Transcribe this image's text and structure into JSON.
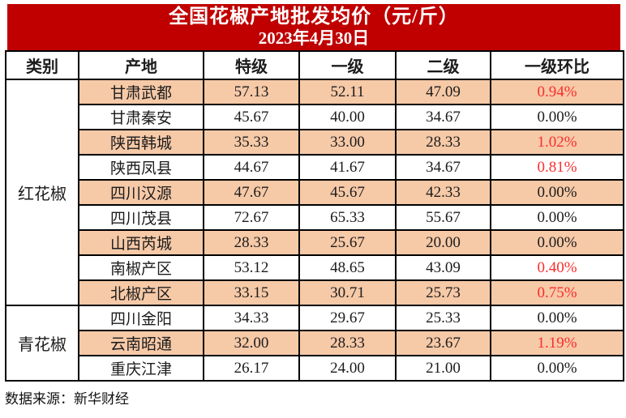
{
  "title": {
    "line1": "全国花椒产地批发均价（元/斤）",
    "line2": "2023年4月30日"
  },
  "table": {
    "columns": [
      "类别",
      "产地",
      "特级",
      "一级",
      "二级",
      "一级环比"
    ],
    "groups": [
      {
        "category": "红花椒",
        "rows": [
          {
            "origin": "甘肃武都",
            "premium": "57.13",
            "grade1": "52.11",
            "grade2": "47.09",
            "mom": "0.94%",
            "mom_highlight": true,
            "shaded": true
          },
          {
            "origin": "甘肃秦安",
            "premium": "45.67",
            "grade1": "40.00",
            "grade2": "34.67",
            "mom": "0.00%",
            "mom_highlight": false,
            "shaded": false
          },
          {
            "origin": "陕西韩城",
            "premium": "35.33",
            "grade1": "33.00",
            "grade2": "28.33",
            "mom": "1.02%",
            "mom_highlight": true,
            "shaded": true
          },
          {
            "origin": "陕西凤县",
            "premium": "44.67",
            "grade1": "41.67",
            "grade2": "34.67",
            "mom": "0.81%",
            "mom_highlight": true,
            "shaded": false
          },
          {
            "origin": "四川汉源",
            "premium": "47.67",
            "grade1": "45.67",
            "grade2": "42.33",
            "mom": "0.00%",
            "mom_highlight": false,
            "shaded": true
          },
          {
            "origin": "四川茂县",
            "premium": "72.67",
            "grade1": "65.33",
            "grade2": "55.67",
            "mom": "0.00%",
            "mom_highlight": false,
            "shaded": false
          },
          {
            "origin": "山西芮城",
            "premium": "28.33",
            "grade1": "25.67",
            "grade2": "20.00",
            "mom": "0.00%",
            "mom_highlight": false,
            "shaded": true
          },
          {
            "origin": "南椒产区",
            "premium": "53.12",
            "grade1": "48.65",
            "grade2": "43.09",
            "mom": "0.40%",
            "mom_highlight": true,
            "shaded": false
          },
          {
            "origin": "北椒产区",
            "premium": "33.15",
            "grade1": "30.71",
            "grade2": "25.73",
            "mom": "0.75%",
            "mom_highlight": true,
            "shaded": true
          }
        ]
      },
      {
        "category": "青花椒",
        "rows": [
          {
            "origin": "四川金阳",
            "premium": "34.33",
            "grade1": "29.67",
            "grade2": "25.33",
            "mom": "0.00%",
            "mom_highlight": false,
            "shaded": false
          },
          {
            "origin": "云南昭通",
            "premium": "32.00",
            "grade1": "28.33",
            "grade2": "23.67",
            "mom": "1.19%",
            "mom_highlight": true,
            "shaded": true
          },
          {
            "origin": "重庆江津",
            "premium": "26.17",
            "grade1": "24.00",
            "grade2": "21.00",
            "mom": "0.00%",
            "mom_highlight": false,
            "shaded": false
          }
        ]
      }
    ]
  },
  "footer": {
    "source": "数据来源：新华财经"
  },
  "colors": {
    "banner_bg": "#C00000",
    "banner_text": "#FFFFFF",
    "row_shade": "#F6C9A7",
    "highlight_red": "#FB2E2E",
    "border": "#000000"
  },
  "chart_data": {
    "type": "table",
    "title": "全国花椒产地批发均价（元/斤）",
    "subtitle": "2023年4月30日",
    "columns": [
      "类别",
      "产地",
      "特级",
      "一级",
      "二级",
      "一级环比"
    ],
    "rows": [
      [
        "红花椒",
        "甘肃武都",
        57.13,
        52.11,
        47.09,
        "0.94%"
      ],
      [
        "红花椒",
        "甘肃秦安",
        45.67,
        40.0,
        34.67,
        "0.00%"
      ],
      [
        "红花椒",
        "陕西韩城",
        35.33,
        33.0,
        28.33,
        "1.02%"
      ],
      [
        "红花椒",
        "陕西凤县",
        44.67,
        41.67,
        34.67,
        "0.81%"
      ],
      [
        "红花椒",
        "四川汉源",
        47.67,
        45.67,
        42.33,
        "0.00%"
      ],
      [
        "红花椒",
        "四川茂县",
        72.67,
        65.33,
        55.67,
        "0.00%"
      ],
      [
        "红花椒",
        "山西芮城",
        28.33,
        25.67,
        20.0,
        "0.00%"
      ],
      [
        "红花椒",
        "南椒产区",
        53.12,
        48.65,
        43.09,
        "0.40%"
      ],
      [
        "红花椒",
        "北椒产区",
        33.15,
        30.71,
        25.73,
        "0.75%"
      ],
      [
        "青花椒",
        "四川金阳",
        34.33,
        29.67,
        25.33,
        "0.00%"
      ],
      [
        "青花椒",
        "云南昭通",
        32.0,
        28.33,
        23.67,
        "1.19%"
      ],
      [
        "青花椒",
        "重庆江津",
        26.17,
        24.0,
        21.0,
        "0.00%"
      ]
    ],
    "highlighted_red_mom_values": [
      "0.94%",
      "1.02%",
      "0.81%",
      "0.40%",
      "0.75%",
      "1.19%"
    ],
    "source": "数据来源：新华财经"
  }
}
